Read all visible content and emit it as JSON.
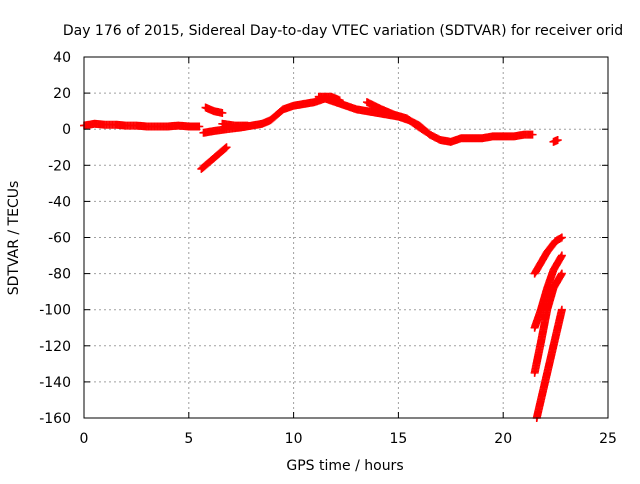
{
  "chart_data": {
    "type": "scatter",
    "title": "Day 176 of 2015, Sidereal Day-to-day VTEC variation (SDTVAR) for receiver orid",
    "xlabel": "GPS time / hours",
    "ylabel": "SDTVAR / TECUs",
    "xlim": [
      0,
      25
    ],
    "ylim": [
      -160,
      40
    ],
    "xticks": [
      "0",
      "5",
      "10",
      "15",
      "20",
      "25"
    ],
    "yticks": [
      "40",
      "20",
      "0",
      "-20",
      "-40",
      "-60",
      "-80",
      "-100",
      "-120",
      "-140",
      "-160"
    ],
    "grid": true,
    "marker_color": "#ff0000",
    "series": [
      {
        "segments": [
          [
            [
              0.0,
              2
            ],
            [
              0.5,
              3
            ],
            [
              1.0,
              2.5
            ],
            [
              1.5,
              2.5
            ],
            [
              2.0,
              2
            ],
            [
              2.5,
              2
            ],
            [
              3.0,
              1.5
            ],
            [
              3.5,
              1.5
            ],
            [
              4.0,
              1.5
            ],
            [
              4.5,
              2
            ],
            [
              5.0,
              1.5
            ],
            [
              5.5,
              1.5
            ]
          ],
          [
            [
              5.7,
              -2
            ],
            [
              6.2,
              -1
            ],
            [
              6.8,
              0
            ],
            [
              7.5,
              1
            ],
            [
              8.0,
              2
            ],
            [
              8.5,
              3
            ],
            [
              8.9,
              5
            ],
            [
              9.2,
              8
            ],
            [
              9.5,
              11
            ],
            [
              10.0,
              13
            ],
            [
              10.5,
              14
            ],
            [
              11.0,
              15
            ],
            [
              11.5,
              17
            ],
            [
              12.0,
              15
            ],
            [
              12.5,
              13
            ],
            [
              13.0,
              11
            ],
            [
              13.5,
              10
            ],
            [
              14.0,
              9
            ],
            [
              14.5,
              8
            ],
            [
              15.0,
              7
            ],
            [
              15.5,
              5
            ],
            [
              16.0,
              2
            ],
            [
              16.5,
              -3
            ],
            [
              17.0,
              -6
            ],
            [
              17.5,
              -7
            ],
            [
              18.0,
              -5
            ],
            [
              18.5,
              -5
            ],
            [
              19.0,
              -5
            ],
            [
              19.5,
              -4
            ],
            [
              20.0,
              -4
            ],
            [
              20.5,
              -4
            ],
            [
              21.0,
              -3
            ],
            [
              21.4,
              -3
            ]
          ],
          [
            [
              5.8,
              12
            ],
            [
              6.2,
              10
            ],
            [
              6.6,
              9
            ]
          ],
          [
            [
              6.6,
              3
            ],
            [
              7.2,
              2
            ],
            [
              7.8,
              2
            ]
          ],
          [
            [
              11.2,
              18
            ],
            [
              11.8,
              18
            ],
            [
              12.2,
              16
            ]
          ],
          [
            [
              13.5,
              15
            ],
            [
              14.2,
              11
            ],
            [
              14.8,
              8
            ],
            [
              15.4,
              6
            ],
            [
              16.0,
              1
            ],
            [
              16.4,
              -2
            ]
          ],
          [
            [
              5.6,
              -22
            ],
            [
              6.0,
              -18
            ],
            [
              6.4,
              -14
            ],
            [
              6.8,
              -10
            ]
          ],
          [
            [
              22.4,
              -7
            ],
            [
              22.6,
              -6
            ]
          ],
          [
            [
              21.5,
              -80
            ],
            [
              21.8,
              -74
            ],
            [
              22.1,
              -68
            ],
            [
              22.5,
              -62
            ],
            [
              22.8,
              -60
            ]
          ],
          [
            [
              21.5,
              -110
            ],
            [
              21.8,
              -100
            ],
            [
              22.1,
              -88
            ],
            [
              22.4,
              -78
            ],
            [
              22.8,
              -70
            ]
          ],
          [
            [
              21.5,
              -135
            ],
            [
              21.8,
              -118
            ],
            [
              22.1,
              -100
            ],
            [
              22.4,
              -88
            ],
            [
              22.8,
              -80
            ]
          ],
          [
            [
              21.6,
              -160
            ],
            [
              21.9,
              -145
            ],
            [
              22.2,
              -130
            ],
            [
              22.5,
              -115
            ],
            [
              22.8,
              -100
            ]
          ]
        ]
      }
    ]
  }
}
